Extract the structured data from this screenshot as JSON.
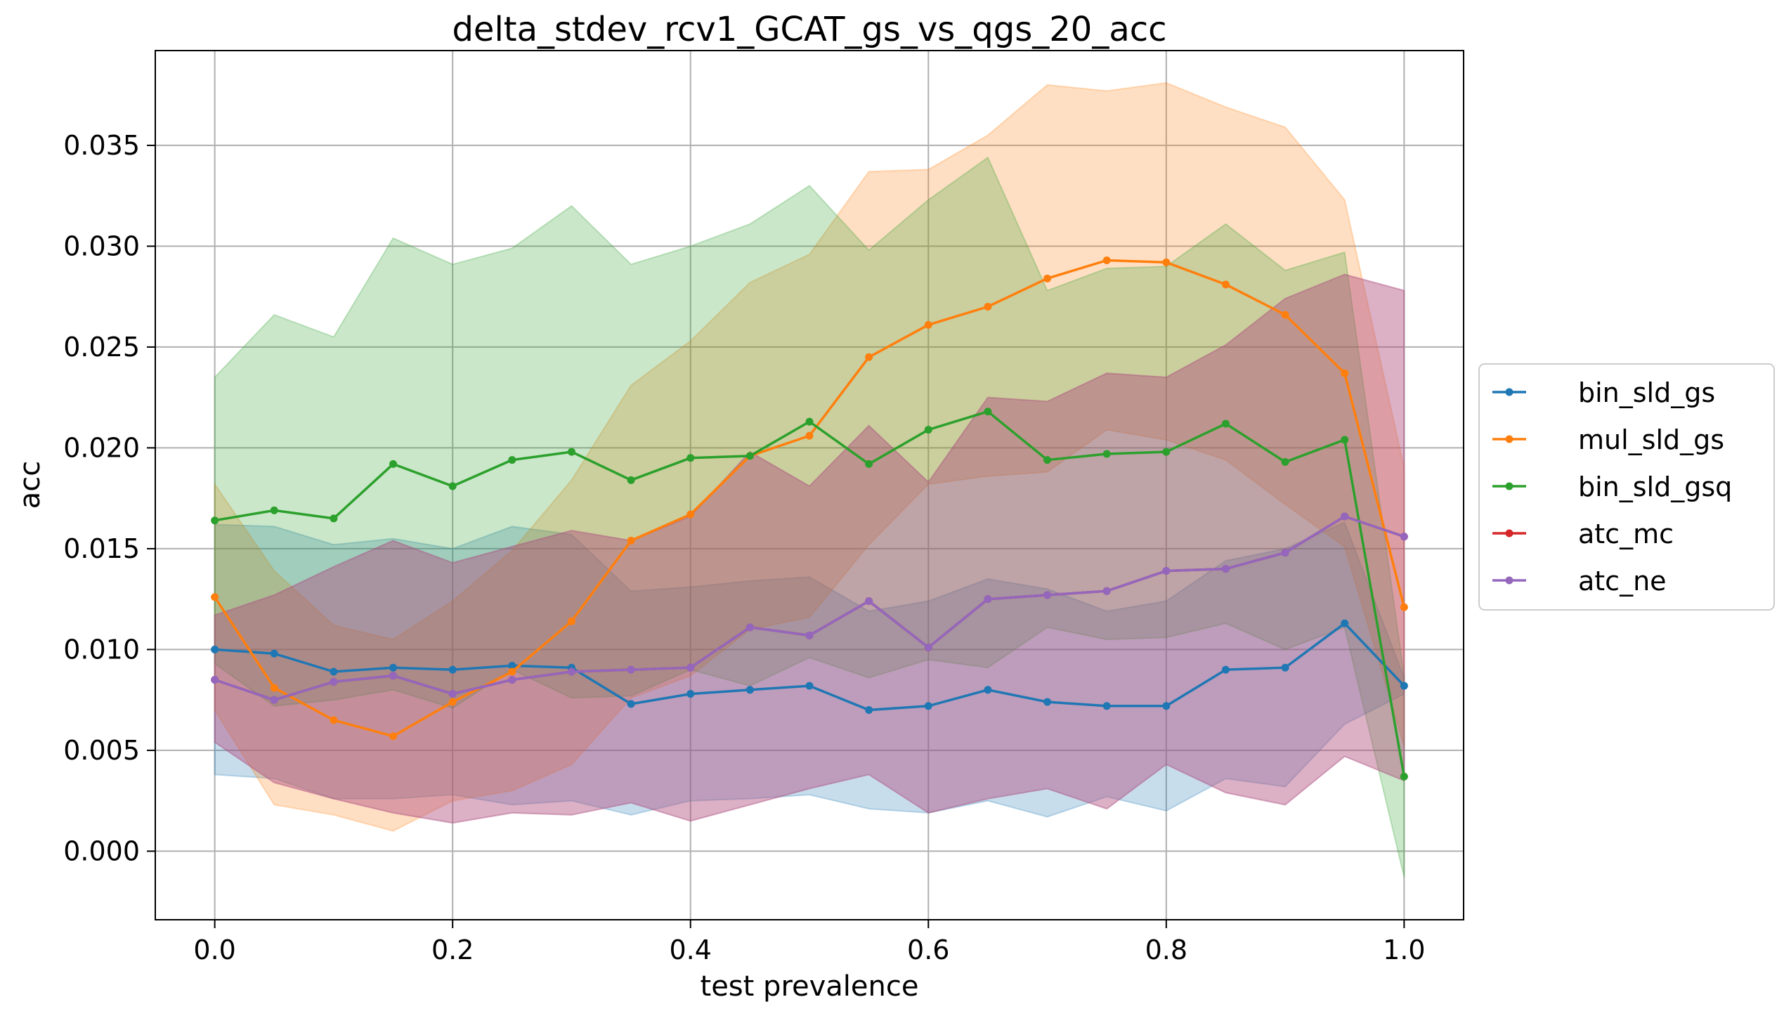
{
  "chart_data": {
    "type": "line",
    "title": "delta_stdev_rcv1_GCAT_gs_vs_qgs_20_acc",
    "xlabel": "test prevalence",
    "ylabel": "acc",
    "xlim": [
      -0.05,
      1.05
    ],
    "ylim": [
      -0.0034,
      0.0397
    ],
    "x_ticks": [
      0.0,
      0.2,
      0.4,
      0.6,
      0.8,
      1.0
    ],
    "x_tick_labels": [
      "0.0",
      "0.2",
      "0.4",
      "0.6",
      "0.8",
      "1.0"
    ],
    "y_ticks": [
      0.0,
      0.005,
      0.01,
      0.015,
      0.02,
      0.025,
      0.03,
      0.035
    ],
    "y_tick_labels": [
      "0.000",
      "0.005",
      "0.010",
      "0.015",
      "0.020",
      "0.025",
      "0.030",
      "0.035"
    ],
    "grid": true,
    "legend_position": "right-outside",
    "x": [
      0.0,
      0.05,
      0.1,
      0.15,
      0.2,
      0.25,
      0.3,
      0.35,
      0.4,
      0.45,
      0.5,
      0.55,
      0.6,
      0.65,
      0.7,
      0.75,
      0.8,
      0.85,
      0.9,
      0.95,
      1.0
    ],
    "series": [
      {
        "name": "bin_sld_gs",
        "color": "#1f77b4",
        "values": [
          0.01,
          0.0098,
          0.0089,
          0.0091,
          0.009,
          0.0092,
          0.0091,
          0.0073,
          0.0078,
          0.008,
          0.0082,
          0.007,
          0.0072,
          0.008,
          0.0074,
          0.0072,
          0.0072,
          0.009,
          0.0091,
          0.0113,
          0.0082
        ],
        "lower": [
          0.0038,
          0.0036,
          0.0026,
          0.0026,
          0.0028,
          0.0023,
          0.0025,
          0.0018,
          0.0025,
          0.0026,
          0.0028,
          0.0021,
          0.0019,
          0.0025,
          0.0017,
          0.0027,
          0.002,
          0.0036,
          0.0032,
          0.0063,
          0.0078
        ],
        "upper": [
          0.0162,
          0.0161,
          0.0152,
          0.0155,
          0.015,
          0.0161,
          0.0157,
          0.0129,
          0.0131,
          0.0134,
          0.0136,
          0.0119,
          0.0124,
          0.0135,
          0.013,
          0.0119,
          0.0124,
          0.0144,
          0.015,
          0.0163,
          0.0086
        ]
      },
      {
        "name": "mul_sld_gs",
        "color": "#ff7f0e",
        "values": [
          0.0126,
          0.0081,
          0.0065,
          0.0057,
          0.0074,
          0.0089,
          0.0114,
          0.0154,
          0.0167,
          0.0196,
          0.0206,
          0.0245,
          0.0261,
          0.027,
          0.0284,
          0.0293,
          0.0292,
          0.0281,
          0.0266,
          0.0237,
          0.0121
        ],
        "lower": [
          0.007,
          0.0023,
          0.0018,
          0.001,
          0.0025,
          0.003,
          0.0043,
          0.0076,
          0.0087,
          0.011,
          0.0116,
          0.0152,
          0.0182,
          0.0186,
          0.0188,
          0.0209,
          0.0204,
          0.0194,
          0.0172,
          0.0151,
          0.0052
        ],
        "upper": [
          0.0182,
          0.0139,
          0.0112,
          0.0105,
          0.0124,
          0.0149,
          0.0184,
          0.0231,
          0.0253,
          0.0282,
          0.0296,
          0.0337,
          0.0338,
          0.0355,
          0.038,
          0.0377,
          0.0381,
          0.0369,
          0.0359,
          0.0323,
          0.019
        ]
      },
      {
        "name": "bin_sld_gsq",
        "color": "#2ca02c",
        "values": [
          0.0164,
          0.0169,
          0.0165,
          0.0192,
          0.0181,
          0.0194,
          0.0198,
          0.0184,
          0.0195,
          0.0196,
          0.0213,
          0.0192,
          0.0209,
          0.0218,
          0.0194,
          0.0197,
          0.0198,
          0.0212,
          0.0193,
          0.0204,
          0.0037
        ],
        "lower": [
          0.0093,
          0.0072,
          0.0075,
          0.008,
          0.0071,
          0.009,
          0.0076,
          0.0077,
          0.009,
          0.0082,
          0.0096,
          0.0086,
          0.0095,
          0.0091,
          0.0111,
          0.0105,
          0.0106,
          0.0113,
          0.01,
          0.0111,
          -0.0013
        ],
        "upper": [
          0.0235,
          0.0266,
          0.0255,
          0.0304,
          0.0291,
          0.0299,
          0.032,
          0.0291,
          0.03,
          0.0311,
          0.033,
          0.0298,
          0.0323,
          0.0344,
          0.0278,
          0.0289,
          0.029,
          0.0311,
          0.0288,
          0.0297,
          0.0087
        ]
      },
      {
        "name": "atc_mc",
        "color": "#d62728",
        "values": [
          0.0085,
          0.0075,
          0.0084,
          0.0087,
          0.0078,
          0.0085,
          0.0089,
          0.009,
          0.0091,
          0.0111,
          0.0107,
          0.0124,
          0.0101,
          0.0125,
          0.0127,
          0.0129,
          0.0139,
          0.014,
          0.0148,
          0.0166,
          0.0156
        ],
        "lower": [
          0.0054,
          0.0034,
          0.0026,
          0.0019,
          0.0014,
          0.0019,
          0.0018,
          0.0024,
          0.0015,
          0.0023,
          0.0031,
          0.0038,
          0.0019,
          0.0026,
          0.0031,
          0.0021,
          0.0043,
          0.0029,
          0.0023,
          0.0047,
          0.0035
        ],
        "upper": [
          0.0117,
          0.0127,
          0.0141,
          0.0154,
          0.0143,
          0.0151,
          0.0159,
          0.0154,
          0.0166,
          0.0198,
          0.0181,
          0.0211,
          0.0183,
          0.0225,
          0.0223,
          0.0237,
          0.0235,
          0.0251,
          0.0274,
          0.0286,
          0.0278
        ]
      },
      {
        "name": "atc_ne",
        "color": "#9467bd",
        "values": [
          0.0085,
          0.0075,
          0.0084,
          0.0087,
          0.0078,
          0.0085,
          0.0089,
          0.009,
          0.0091,
          0.0111,
          0.0107,
          0.0124,
          0.0101,
          0.0125,
          0.0127,
          0.0129,
          0.0139,
          0.014,
          0.0148,
          0.0166,
          0.0156
        ],
        "lower": [
          0.0054,
          0.0034,
          0.0026,
          0.0019,
          0.0014,
          0.0019,
          0.0018,
          0.0024,
          0.0015,
          0.0023,
          0.0031,
          0.0038,
          0.0019,
          0.0026,
          0.0031,
          0.0021,
          0.0043,
          0.0029,
          0.0023,
          0.0047,
          0.0035
        ],
        "upper": [
          0.0117,
          0.0127,
          0.0141,
          0.0154,
          0.0143,
          0.0151,
          0.0159,
          0.0154,
          0.0166,
          0.0198,
          0.0181,
          0.0211,
          0.0183,
          0.0225,
          0.0223,
          0.0237,
          0.0235,
          0.0251,
          0.0274,
          0.0286,
          0.0278
        ]
      }
    ]
  }
}
